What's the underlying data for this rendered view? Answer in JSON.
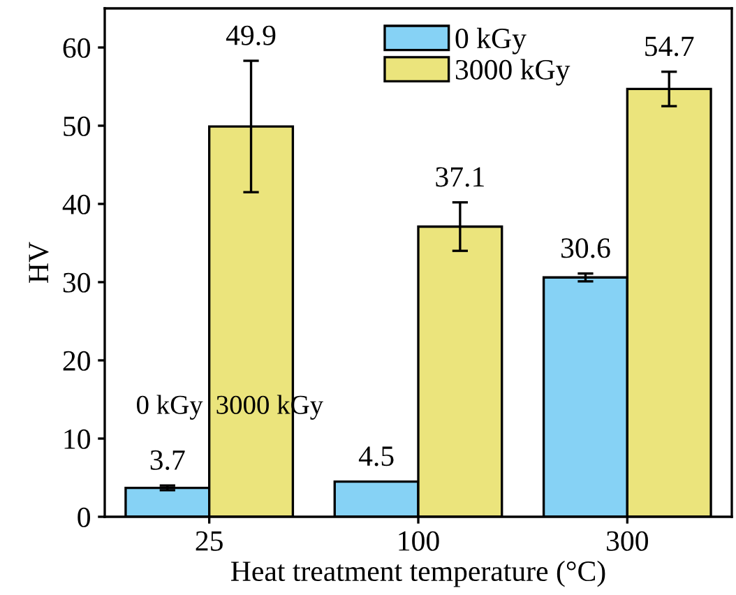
{
  "chart_data": {
    "type": "bar",
    "xlabel": "Heat treatment temperature (°C)",
    "ylabel": "HV",
    "categories": [
      "25",
      "100",
      "300"
    ],
    "series": [
      {
        "name": "0 kGy",
        "color": "#86d2f5",
        "values": [
          3.7,
          4.5,
          30.6
        ],
        "errors": [
          0.3,
          null,
          0.5
        ]
      },
      {
        "name": "3000 kGy",
        "color": "#ebe47c",
        "values": [
          49.9,
          37.1,
          54.7
        ],
        "errors": [
          8.4,
          3.1,
          2.2
        ]
      }
    ],
    "ylim": [
      0,
      65
    ],
    "yticks": [
      0,
      10,
      20,
      30,
      40,
      50,
      60
    ],
    "data_labels": true,
    "legend": "top right",
    "grid": false,
    "annotations": [
      "0 kGy",
      "3000 kGy"
    ]
  }
}
